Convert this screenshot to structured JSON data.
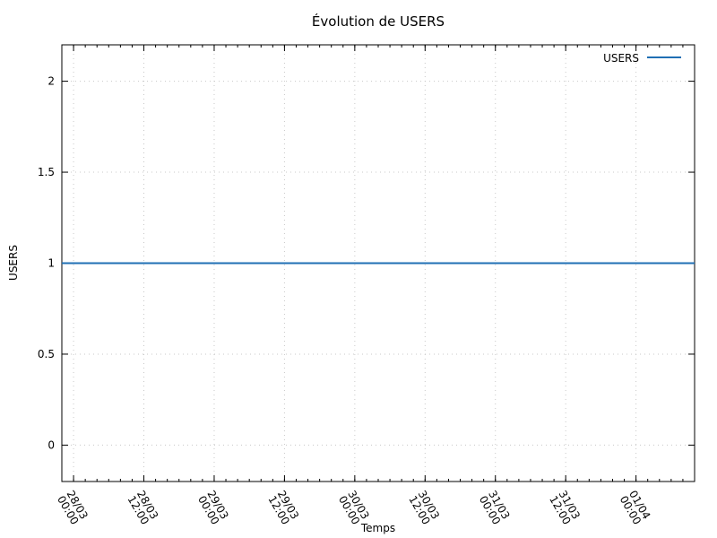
{
  "chart_data": {
    "type": "line",
    "title": "Évolution de USERS",
    "xlabel": "Temps",
    "ylabel": "USERS",
    "ylim": [
      -0.2,
      2.2
    ],
    "y_ticks": [
      0,
      0.5,
      1,
      1.5,
      2
    ],
    "y_tick_labels": [
      "0",
      "0.5",
      "1",
      "1.5",
      "2"
    ],
    "x_axis_type": "datetime",
    "x_range": [
      "27/03 22:00",
      "01/04 10:00"
    ],
    "x_ticks": [
      {
        "date": "28/03",
        "time": "00:00"
      },
      {
        "date": "28/03",
        "time": "12:00"
      },
      {
        "date": "29/03",
        "time": "00:00"
      },
      {
        "date": "29/03",
        "time": "12:00"
      },
      {
        "date": "30/03",
        "time": "00:00"
      },
      {
        "date": "30/03",
        "time": "12:00"
      },
      {
        "date": "31/03",
        "time": "00:00"
      },
      {
        "date": "31/03",
        "time": "12:00"
      },
      {
        "date": "01/04",
        "time": "00:00"
      }
    ],
    "grid": true,
    "legend_position": "top-right",
    "series": [
      {
        "name": "USERS",
        "color": "#1f6fb4",
        "x": [
          "27/03 22:00",
          "01/04 10:00"
        ],
        "values": [
          1,
          1
        ]
      }
    ]
  }
}
